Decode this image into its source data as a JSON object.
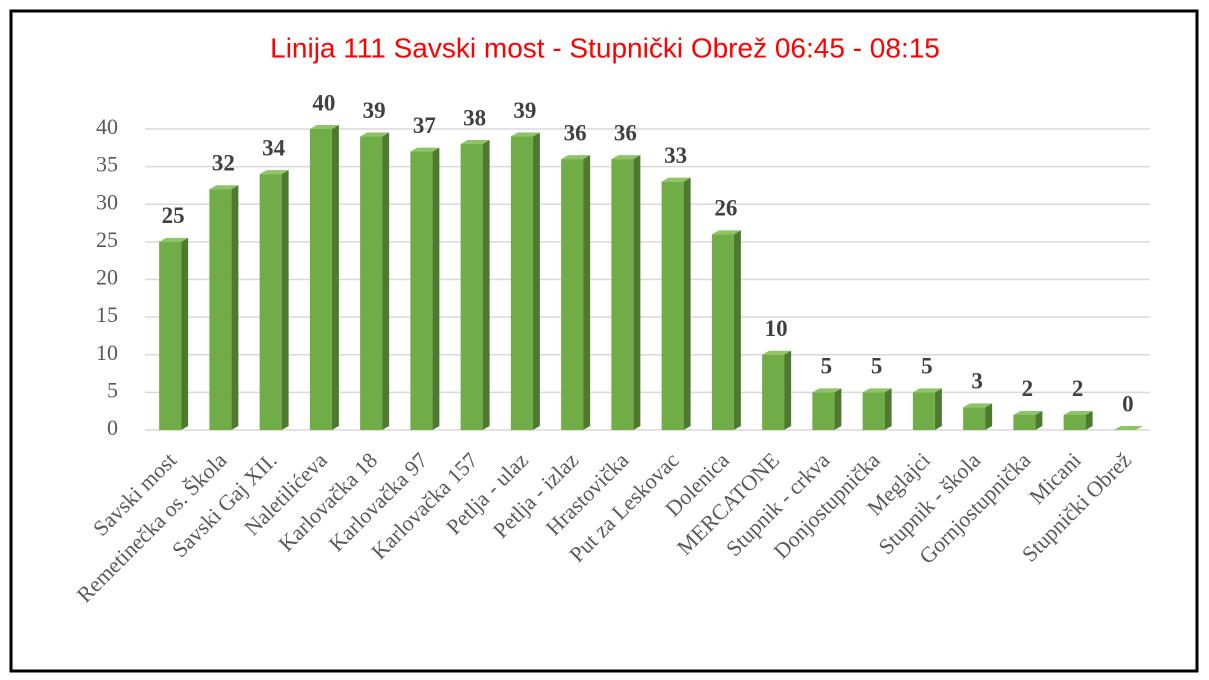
{
  "chart_data": {
    "type": "bar",
    "title": "Linija 111 Savski most - Stupnički Obrež 06:45 - 08:15",
    "categories": [
      "Savski most",
      "Remetinečka os. Škola",
      "Savski Gaj XII.",
      "Naletilićeva",
      "Karlovačka 18",
      "Karlovačka 97",
      "Karlovačka 157",
      "Petlja - ulaz",
      "Petlja - izlaz",
      "Hrastovička",
      "Put za Leskovac",
      "Dolenica",
      "MERCATONE",
      "Stupnik - crkva",
      "Donjostupnička",
      "Meglajci",
      "Stupnik - škola",
      "Gornjostupnička",
      "Micani",
      "Stupnički Obrež"
    ],
    "values": [
      25,
      32,
      34,
      40,
      39,
      37,
      38,
      39,
      36,
      36,
      33,
      26,
      10,
      5,
      5,
      5,
      3,
      2,
      2,
      0
    ],
    "color": "#70ad47",
    "ylim": [
      0,
      40
    ],
    "yticks": [
      0,
      5,
      10,
      15,
      20,
      25,
      30,
      35,
      40
    ],
    "grid": true
  }
}
